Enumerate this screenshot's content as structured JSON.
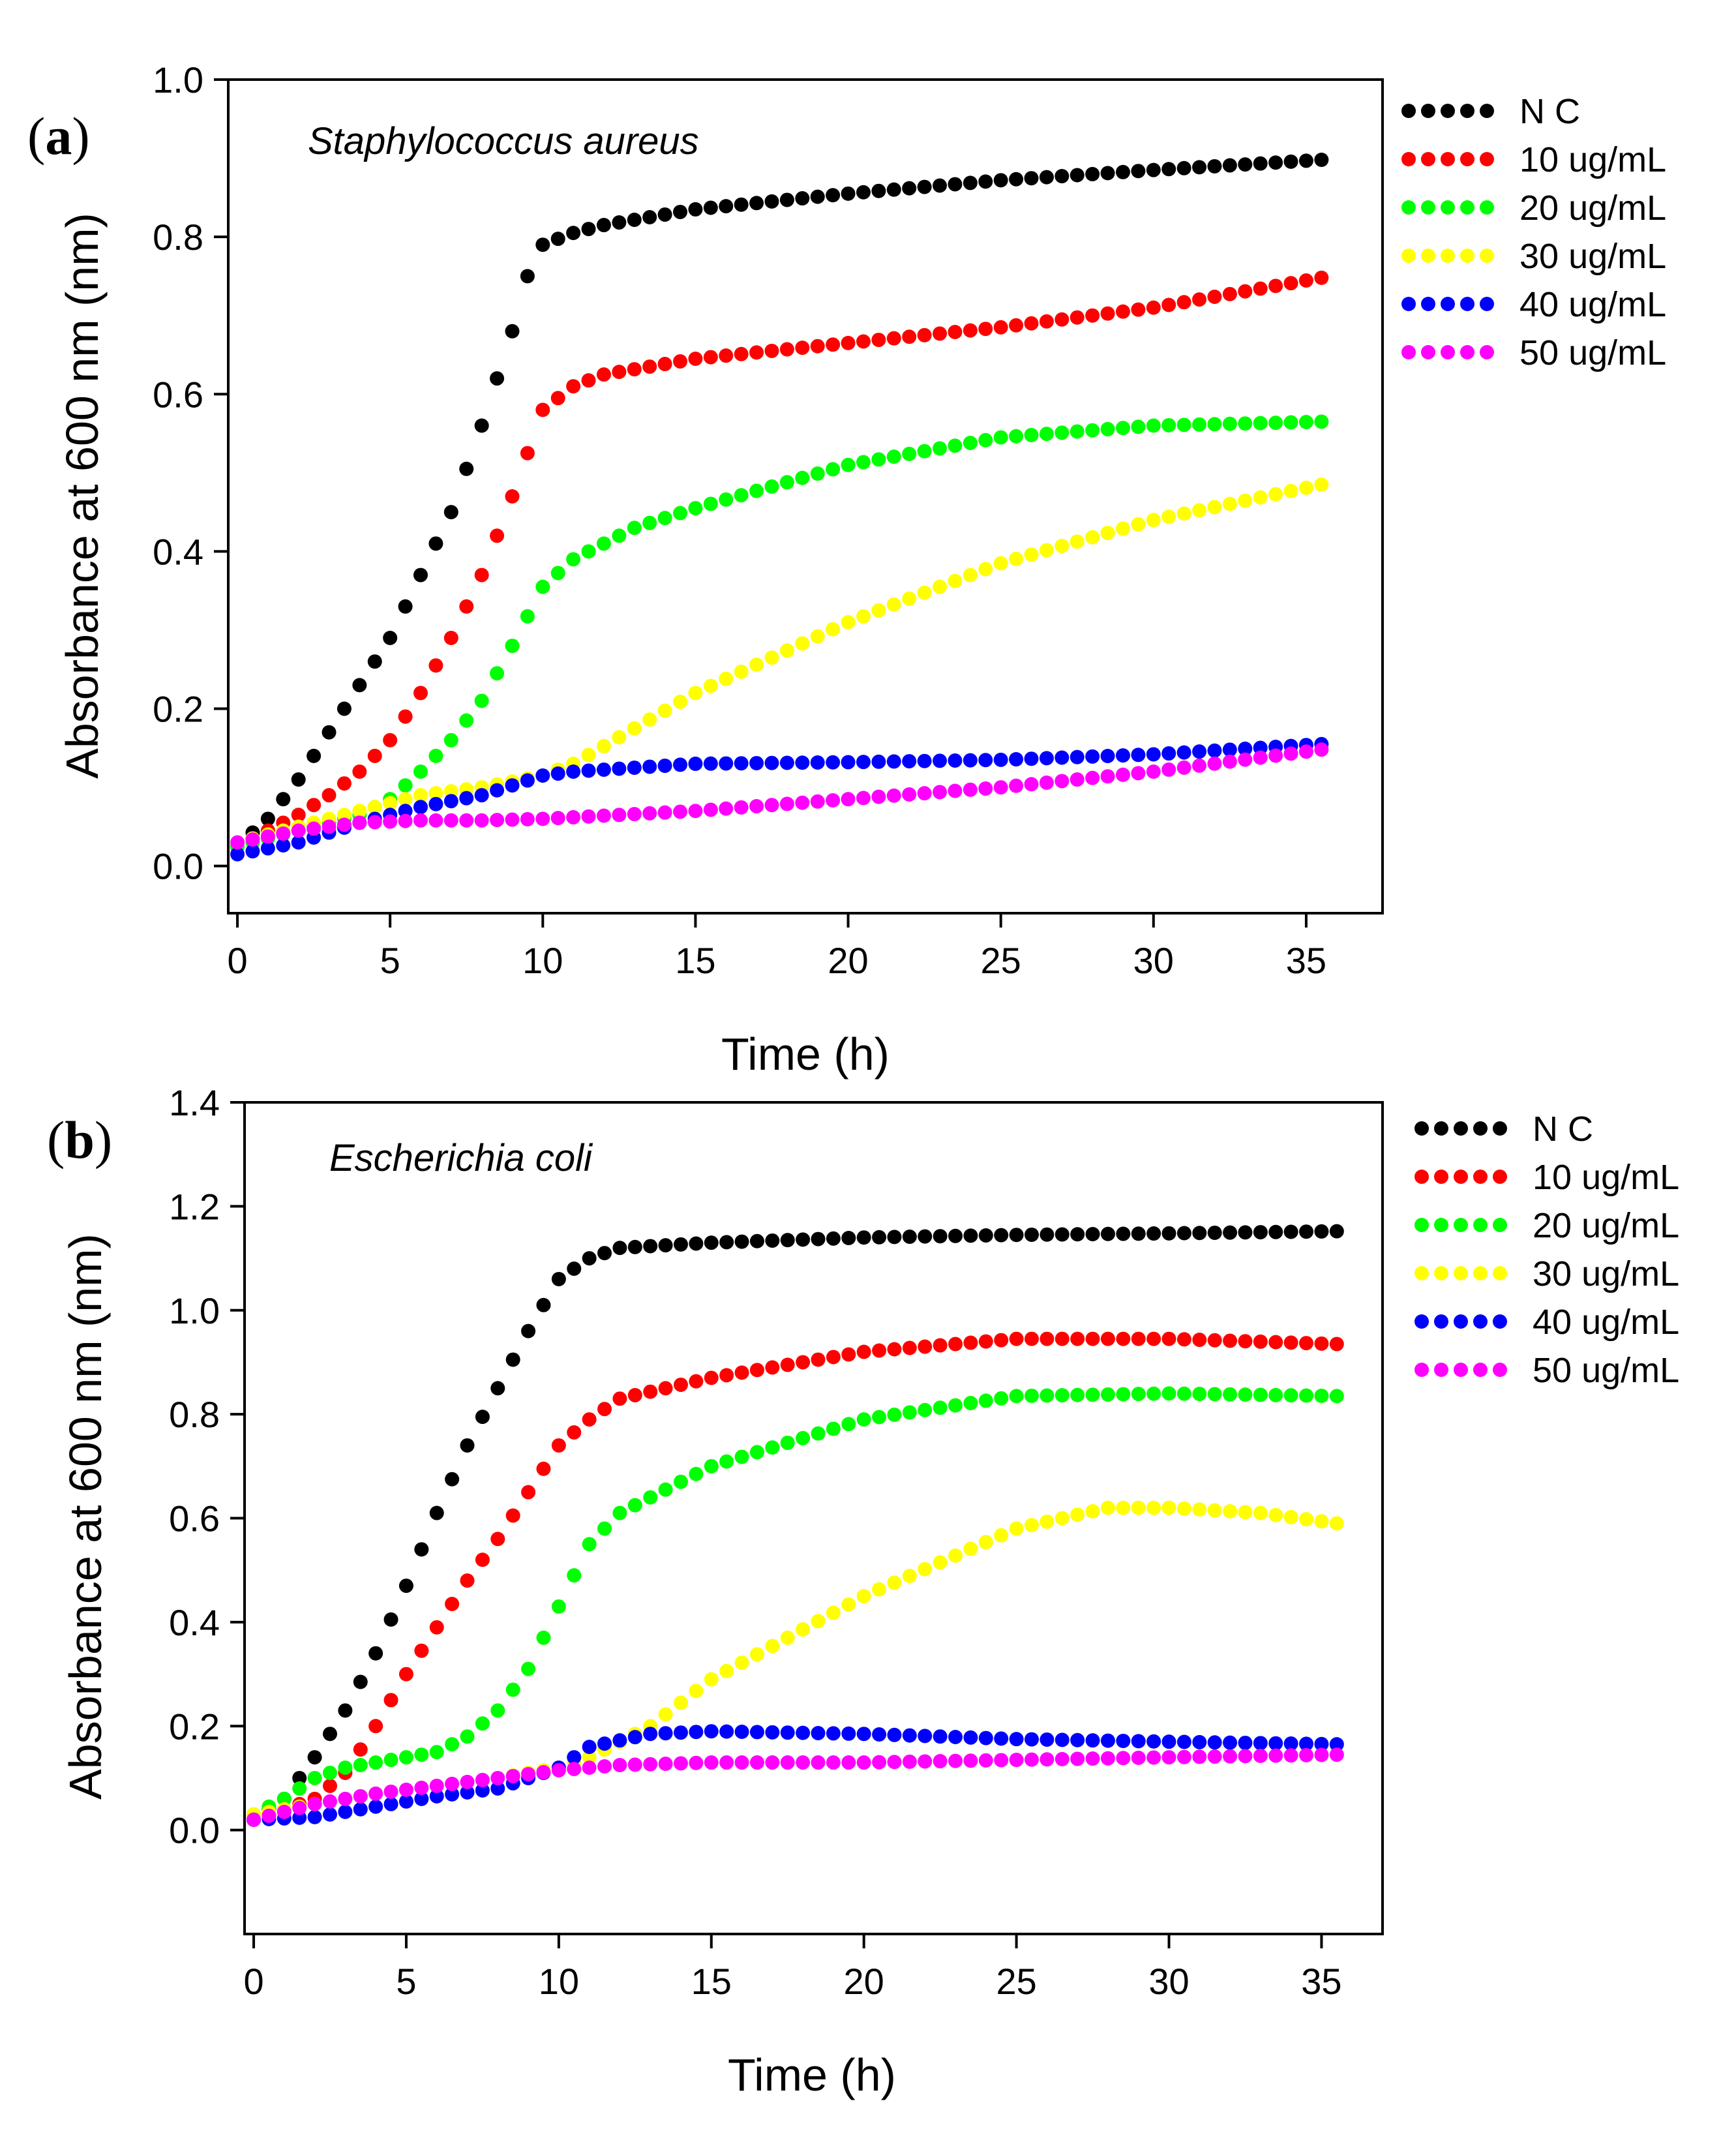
{
  "chart_data": [
    {
      "type": "scatter",
      "panel_label": "a",
      "annotation": "Staphylococcus aureus",
      "xlabel": "Time (h)",
      "ylabel": "Absorbance at 600 nm (nm)",
      "xlim": [
        -0.3,
        37.5
      ],
      "ylim": [
        -0.06,
        1.0
      ],
      "xticks": [
        0,
        5,
        10,
        15,
        20,
        25,
        30,
        35
      ],
      "yticks": [
        0.0,
        0.2,
        0.4,
        0.6,
        0.8,
        1.0
      ],
      "ytick_labels": [
        "0.0",
        "0.2",
        "0.4",
        "0.6",
        "0.8",
        "1.0"
      ],
      "legend_position": "outside-right-top",
      "series": [
        {
          "name": "N C",
          "color": "#000000",
          "points": [
            [
              0,
              0.025
            ],
            [
              1,
              0.06
            ],
            [
              2,
              0.11
            ],
            [
              3,
              0.17
            ],
            [
              4,
              0.23
            ],
            [
              5,
              0.29
            ],
            [
              6,
              0.37
            ],
            [
              7,
              0.45
            ],
            [
              8,
              0.56
            ],
            [
              9,
              0.68
            ],
            [
              9.5,
              0.75
            ],
            [
              10,
              0.79
            ],
            [
              11,
              0.805
            ],
            [
              12,
              0.815
            ],
            [
              15,
              0.835
            ],
            [
              20,
              0.855
            ],
            [
              25,
              0.872
            ],
            [
              30,
              0.885
            ],
            [
              35.5,
              0.898
            ]
          ]
        },
        {
          "name": "10 ug/mL",
          "color": "#ff0000",
          "points": [
            [
              0,
              0.025
            ],
            [
              1,
              0.045
            ],
            [
              2,
              0.065
            ],
            [
              3,
              0.09
            ],
            [
              4,
              0.12
            ],
            [
              5,
              0.16
            ],
            [
              6,
              0.22
            ],
            [
              7,
              0.29
            ],
            [
              8,
              0.37
            ],
            [
              9,
              0.47
            ],
            [
              10,
              0.58
            ],
            [
              11,
              0.61
            ],
            [
              12,
              0.625
            ],
            [
              15,
              0.645
            ],
            [
              20,
              0.665
            ],
            [
              25,
              0.685
            ],
            [
              30,
              0.71
            ],
            [
              35.5,
              0.748
            ]
          ]
        },
        {
          "name": "20 ug/mL",
          "color": "#00ff00",
          "points": [
            [
              0,
              0.025
            ],
            [
              2,
              0.045
            ],
            [
              4,
              0.065
            ],
            [
              5,
              0.085
            ],
            [
              6,
              0.12
            ],
            [
              7,
              0.16
            ],
            [
              8,
              0.21
            ],
            [
              9,
              0.28
            ],
            [
              10,
              0.355
            ],
            [
              11,
              0.39
            ],
            [
              13,
              0.43
            ],
            [
              15,
              0.455
            ],
            [
              20,
              0.51
            ],
            [
              25,
              0.545
            ],
            [
              30,
              0.56
            ],
            [
              35.5,
              0.565
            ]
          ]
        },
        {
          "name": "30 ug/mL",
          "color": "#ffff00",
          "points": [
            [
              0,
              0.03
            ],
            [
              2,
              0.05
            ],
            [
              4,
              0.07
            ],
            [
              6,
              0.09
            ],
            [
              8,
              0.1
            ],
            [
              10,
              0.115
            ],
            [
              11,
              0.13
            ],
            [
              13,
              0.175
            ],
            [
              15,
              0.22
            ],
            [
              20,
              0.31
            ],
            [
              25,
              0.385
            ],
            [
              30,
              0.44
            ],
            [
              35.5,
              0.485
            ]
          ]
        },
        {
          "name": "40 ug/mL",
          "color": "#0000ff",
          "points": [
            [
              0,
              0.015
            ],
            [
              2,
              0.03
            ],
            [
              4,
              0.055
            ],
            [
              6,
              0.075
            ],
            [
              8,
              0.09
            ],
            [
              10,
              0.115
            ],
            [
              11,
              0.12
            ],
            [
              13,
              0.125
            ],
            [
              15,
              0.13
            ],
            [
              20,
              0.132
            ],
            [
              25,
              0.135
            ],
            [
              30,
              0.142
            ],
            [
              35.5,
              0.155
            ]
          ]
        },
        {
          "name": "50 ug/mL",
          "color": "#ff00ff",
          "points": [
            [
              0,
              0.03
            ],
            [
              2,
              0.045
            ],
            [
              4,
              0.055
            ],
            [
              6,
              0.058
            ],
            [
              8,
              0.058
            ],
            [
              10,
              0.06
            ],
            [
              15,
              0.07
            ],
            [
              20,
              0.085
            ],
            [
              25,
              0.1
            ],
            [
              30,
              0.12
            ],
            [
              35.5,
              0.148
            ]
          ]
        }
      ]
    },
    {
      "type": "scatter",
      "panel_label": "b",
      "annotation": "Escherichia coli",
      "xlabel": "Time (h)",
      "ylabel": "Absorbance at 600 nm (nm)",
      "xlim": [
        -0.3,
        37
      ],
      "ylim": [
        -0.2,
        1.4
      ],
      "xticks": [
        0,
        5,
        10,
        15,
        20,
        25,
        30,
        35
      ],
      "yticks": [
        0.0,
        0.2,
        0.4,
        0.6,
        0.8,
        1.0,
        1.2,
        1.4
      ],
      "ytick_labels": [
        "0.0",
        "0.2",
        "0.4",
        "0.6",
        "0.8",
        "1.0",
        "1.2",
        "1.4"
      ],
      "legend_position": "outside-right-top",
      "series": [
        {
          "name": "N C",
          "color": "#000000",
          "points": [
            [
              0,
              0.02
            ],
            [
              1,
              0.06
            ],
            [
              2,
              0.14
            ],
            [
              3,
              0.23
            ],
            [
              4,
              0.34
            ],
            [
              5,
              0.47
            ],
            [
              6,
              0.61
            ],
            [
              7,
              0.74
            ],
            [
              8,
              0.85
            ],
            [
              9,
              0.96
            ],
            [
              10,
              1.06
            ],
            [
              11,
              1.1
            ],
            [
              12,
              1.12
            ],
            [
              15,
              1.13
            ],
            [
              20,
              1.14
            ],
            [
              25,
              1.145
            ],
            [
              30,
              1.148
            ],
            [
              35.5,
              1.152
            ]
          ]
        },
        {
          "name": "10 ug/mL",
          "color": "#ff0000",
          "points": [
            [
              0,
              0.02
            ],
            [
              1,
              0.04
            ],
            [
              2,
              0.06
            ],
            [
              3,
              0.11
            ],
            [
              4,
              0.2
            ],
            [
              5,
              0.3
            ],
            [
              6,
              0.39
            ],
            [
              7,
              0.48
            ],
            [
              8,
              0.56
            ],
            [
              9,
              0.65
            ],
            [
              10,
              0.74
            ],
            [
              11,
              0.79
            ],
            [
              12,
              0.83
            ],
            [
              15,
              0.87
            ],
            [
              20,
              0.92
            ],
            [
              25,
              0.945
            ],
            [
              30,
              0.945
            ],
            [
              35.5,
              0.935
            ]
          ]
        },
        {
          "name": "20 ug/mL",
          "color": "#00ff00",
          "points": [
            [
              0,
              0.03
            ],
            [
              1,
              0.06
            ],
            [
              2,
              0.1
            ],
            [
              3,
              0.12
            ],
            [
              4,
              0.13
            ],
            [
              5,
              0.14
            ],
            [
              6,
              0.15
            ],
            [
              7,
              0.18
            ],
            [
              8,
              0.23
            ],
            [
              9,
              0.31
            ],
            [
              10,
              0.43
            ],
            [
              11,
              0.55
            ],
            [
              12,
              0.61
            ],
            [
              15,
              0.7
            ],
            [
              20,
              0.79
            ],
            [
              25,
              0.835
            ],
            [
              30,
              0.84
            ],
            [
              35.5,
              0.835
            ]
          ]
        },
        {
          "name": "30 ug/mL",
          "color": "#ffff00",
          "points": [
            [
              0,
              0.03
            ],
            [
              2,
              0.05
            ],
            [
              4,
              0.07
            ],
            [
              6,
              0.085
            ],
            [
              8,
              0.1
            ],
            [
              10,
              0.12
            ],
            [
              11,
              0.14
            ],
            [
              13,
              0.2
            ],
            [
              15,
              0.29
            ],
            [
              20,
              0.45
            ],
            [
              25,
              0.58
            ],
            [
              28,
              0.62
            ],
            [
              30,
              0.62
            ],
            [
              33,
              0.61
            ],
            [
              35.5,
              0.59
            ]
          ]
        },
        {
          "name": "40 ug/mL",
          "color": "#0000ff",
          "points": [
            [
              0,
              0.02
            ],
            [
              2,
              0.025
            ],
            [
              4,
              0.045
            ],
            [
              6,
              0.065
            ],
            [
              8,
              0.08
            ],
            [
              10,
              0.12
            ],
            [
              11,
              0.16
            ],
            [
              13,
              0.185
            ],
            [
              15,
              0.19
            ],
            [
              20,
              0.185
            ],
            [
              25,
              0.175
            ],
            [
              30,
              0.17
            ],
            [
              35.5,
              0.165
            ]
          ]
        },
        {
          "name": "50 ug/mL",
          "color": "#ff00ff",
          "points": [
            [
              0,
              0.02
            ],
            [
              2,
              0.05
            ],
            [
              4,
              0.07
            ],
            [
              6,
              0.085
            ],
            [
              8,
              0.1
            ],
            [
              10,
              0.115
            ],
            [
              12,
              0.125
            ],
            [
              15,
              0.13
            ],
            [
              20,
              0.13
            ],
            [
              25,
              0.135
            ],
            [
              30,
              0.14
            ],
            [
              35.5,
              0.145
            ]
          ]
        }
      ]
    }
  ]
}
